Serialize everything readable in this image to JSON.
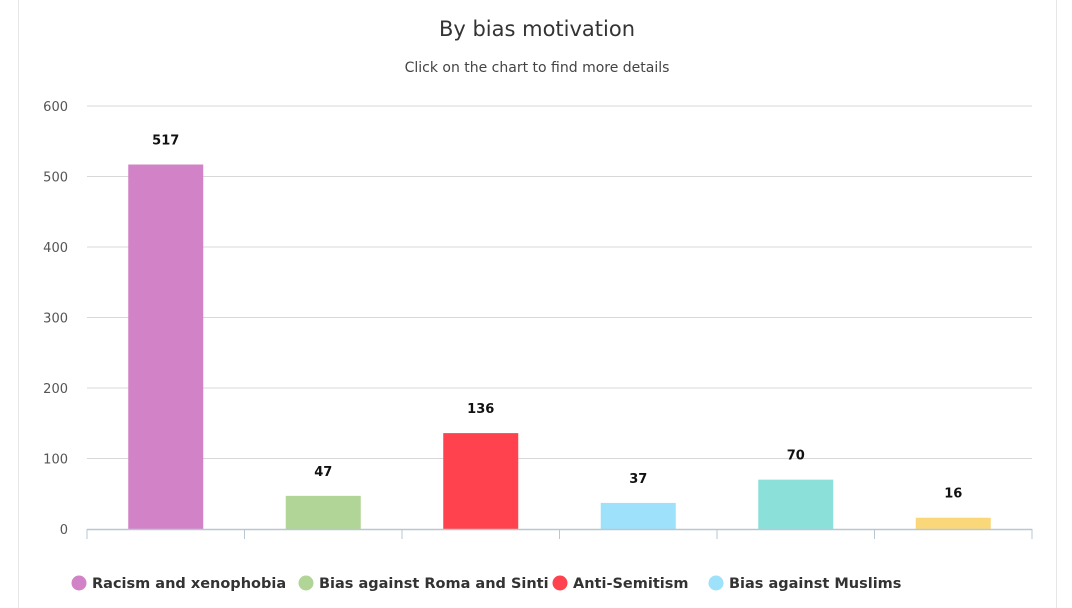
{
  "chart_data": {
    "type": "bar",
    "title": "By bias motivation",
    "subtitle": "Click on the chart to find more details",
    "categories": [
      "Racism and xenophobia",
      "Bias against Roma and Sinti",
      "Anti-Semitism",
      "Bias against Muslims",
      "",
      ""
    ],
    "values": [
      517,
      47,
      136,
      37,
      70,
      16
    ],
    "colors": [
      "#d282c6",
      "#b1d597",
      "#ff424d",
      "#9de1fb",
      "#8be0da",
      "#fad87a"
    ],
    "ylim": [
      0,
      600
    ],
    "yticks": [
      0,
      100,
      200,
      300,
      400,
      500,
      600
    ],
    "grid": true,
    "legend_position": "bottom-left",
    "legend": [
      {
        "label": "Racism and xenophobia",
        "color": "#d282c6"
      },
      {
        "label": "Bias against Roma and Sinti",
        "color": "#b1d597"
      },
      {
        "label": "Anti-Semitism",
        "color": "#ff424d"
      },
      {
        "label": "Bias against Muslims",
        "color": "#9de1fb"
      }
    ]
  }
}
